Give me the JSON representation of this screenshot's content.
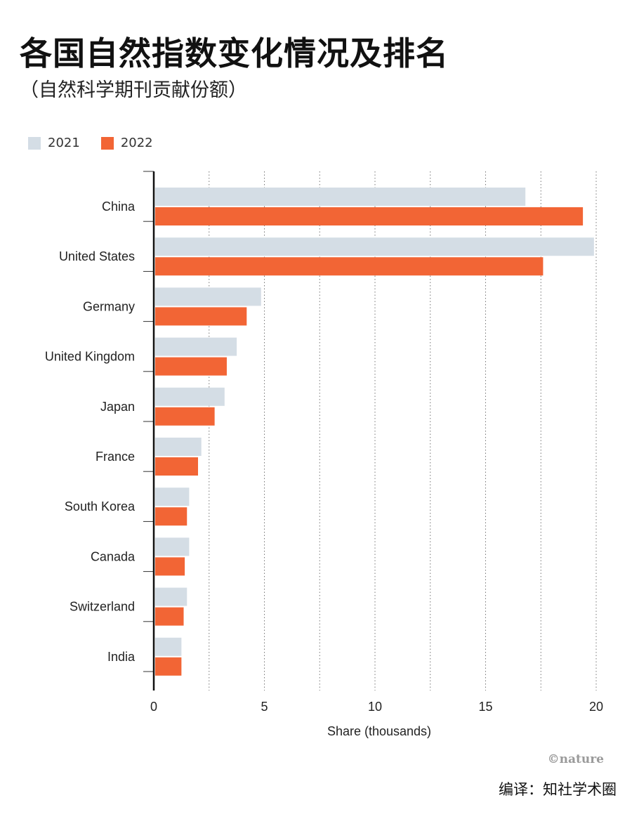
{
  "title": "各国自然指数变化情况及排名",
  "subtitle": "（自然科学期刊贡献份额）",
  "legend": {
    "items": [
      {
        "label": "2021",
        "color": "#d4dde5"
      },
      {
        "label": "2022",
        "color": "#f26535"
      }
    ]
  },
  "credit": "©nature",
  "translator": "编译：知社学术圈",
  "chart_data": {
    "type": "bar",
    "orientation": "horizontal",
    "categories": [
      "China",
      "United States",
      "Germany",
      "United Kingdom",
      "Japan",
      "France",
      "South Korea",
      "Canada",
      "Switzerland",
      "India"
    ],
    "series": [
      {
        "name": "2021",
        "color": "#d4dde5",
        "values": [
          16.8,
          19.9,
          4.85,
          3.75,
          3.2,
          2.15,
          1.6,
          1.6,
          1.5,
          1.25
        ]
      },
      {
        "name": "2022",
        "color": "#f26535",
        "values": [
          19.4,
          17.6,
          4.2,
          3.3,
          2.75,
          2.0,
          1.5,
          1.4,
          1.35,
          1.25
        ]
      }
    ],
    "xlabel": "Share (thousands)",
    "xlim": [
      0,
      20
    ],
    "xticks": [
      0,
      5,
      10,
      15,
      20
    ],
    "legend_position": "top-left",
    "grid": "vertical dotted"
  }
}
